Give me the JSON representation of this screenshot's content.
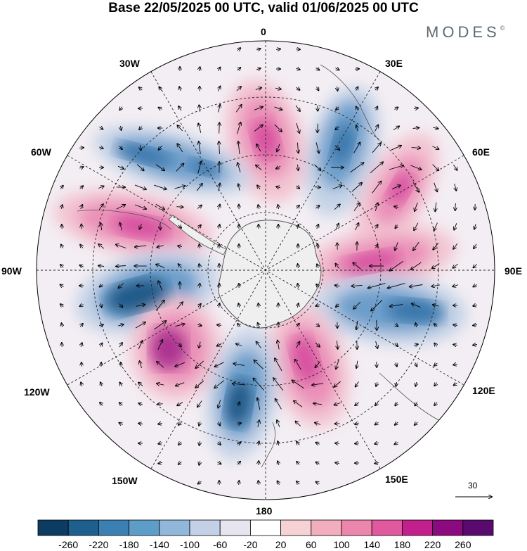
{
  "title": "Base 22/05/2025 00 UTC, valid 01/06/2025 00 UTC",
  "brand": {
    "name": "MODES",
    "mark": "©"
  },
  "map": {
    "projection": "south polar stereographic",
    "longitude_labels": {
      "lon_0": "0",
      "lon_30e": "30E",
      "lon_60e": "60E",
      "lon_90e": "90E",
      "lon_120e": "120E",
      "lon_150e": "150E",
      "lon_180": "180",
      "lon_150w": "150W",
      "lon_120w": "120W",
      "lon_90w": "90W",
      "lon_60w": "60W",
      "lon_30w": "30W"
    },
    "gridlines": "dashed",
    "vectors": "wind arrows",
    "reference_vector_label": "30"
  },
  "colorbar": {
    "tick_labels": [
      "-260",
      "-220",
      "-180",
      "-140",
      "-100",
      "-60",
      "-20",
      "20",
      "60",
      "100",
      "140",
      "180",
      "220",
      "260"
    ],
    "colors": [
      "#0d3c62",
      "#1f5f8e",
      "#3b80b3",
      "#5f9dc9",
      "#91b8da",
      "#c4d0e5",
      "#e6e4ef",
      "#ffffff",
      "#f6d2d4",
      "#f2aebf",
      "#ec86ad",
      "#e0589d",
      "#c2208c",
      "#8c0a7f",
      "#5a0a6e"
    ]
  }
}
